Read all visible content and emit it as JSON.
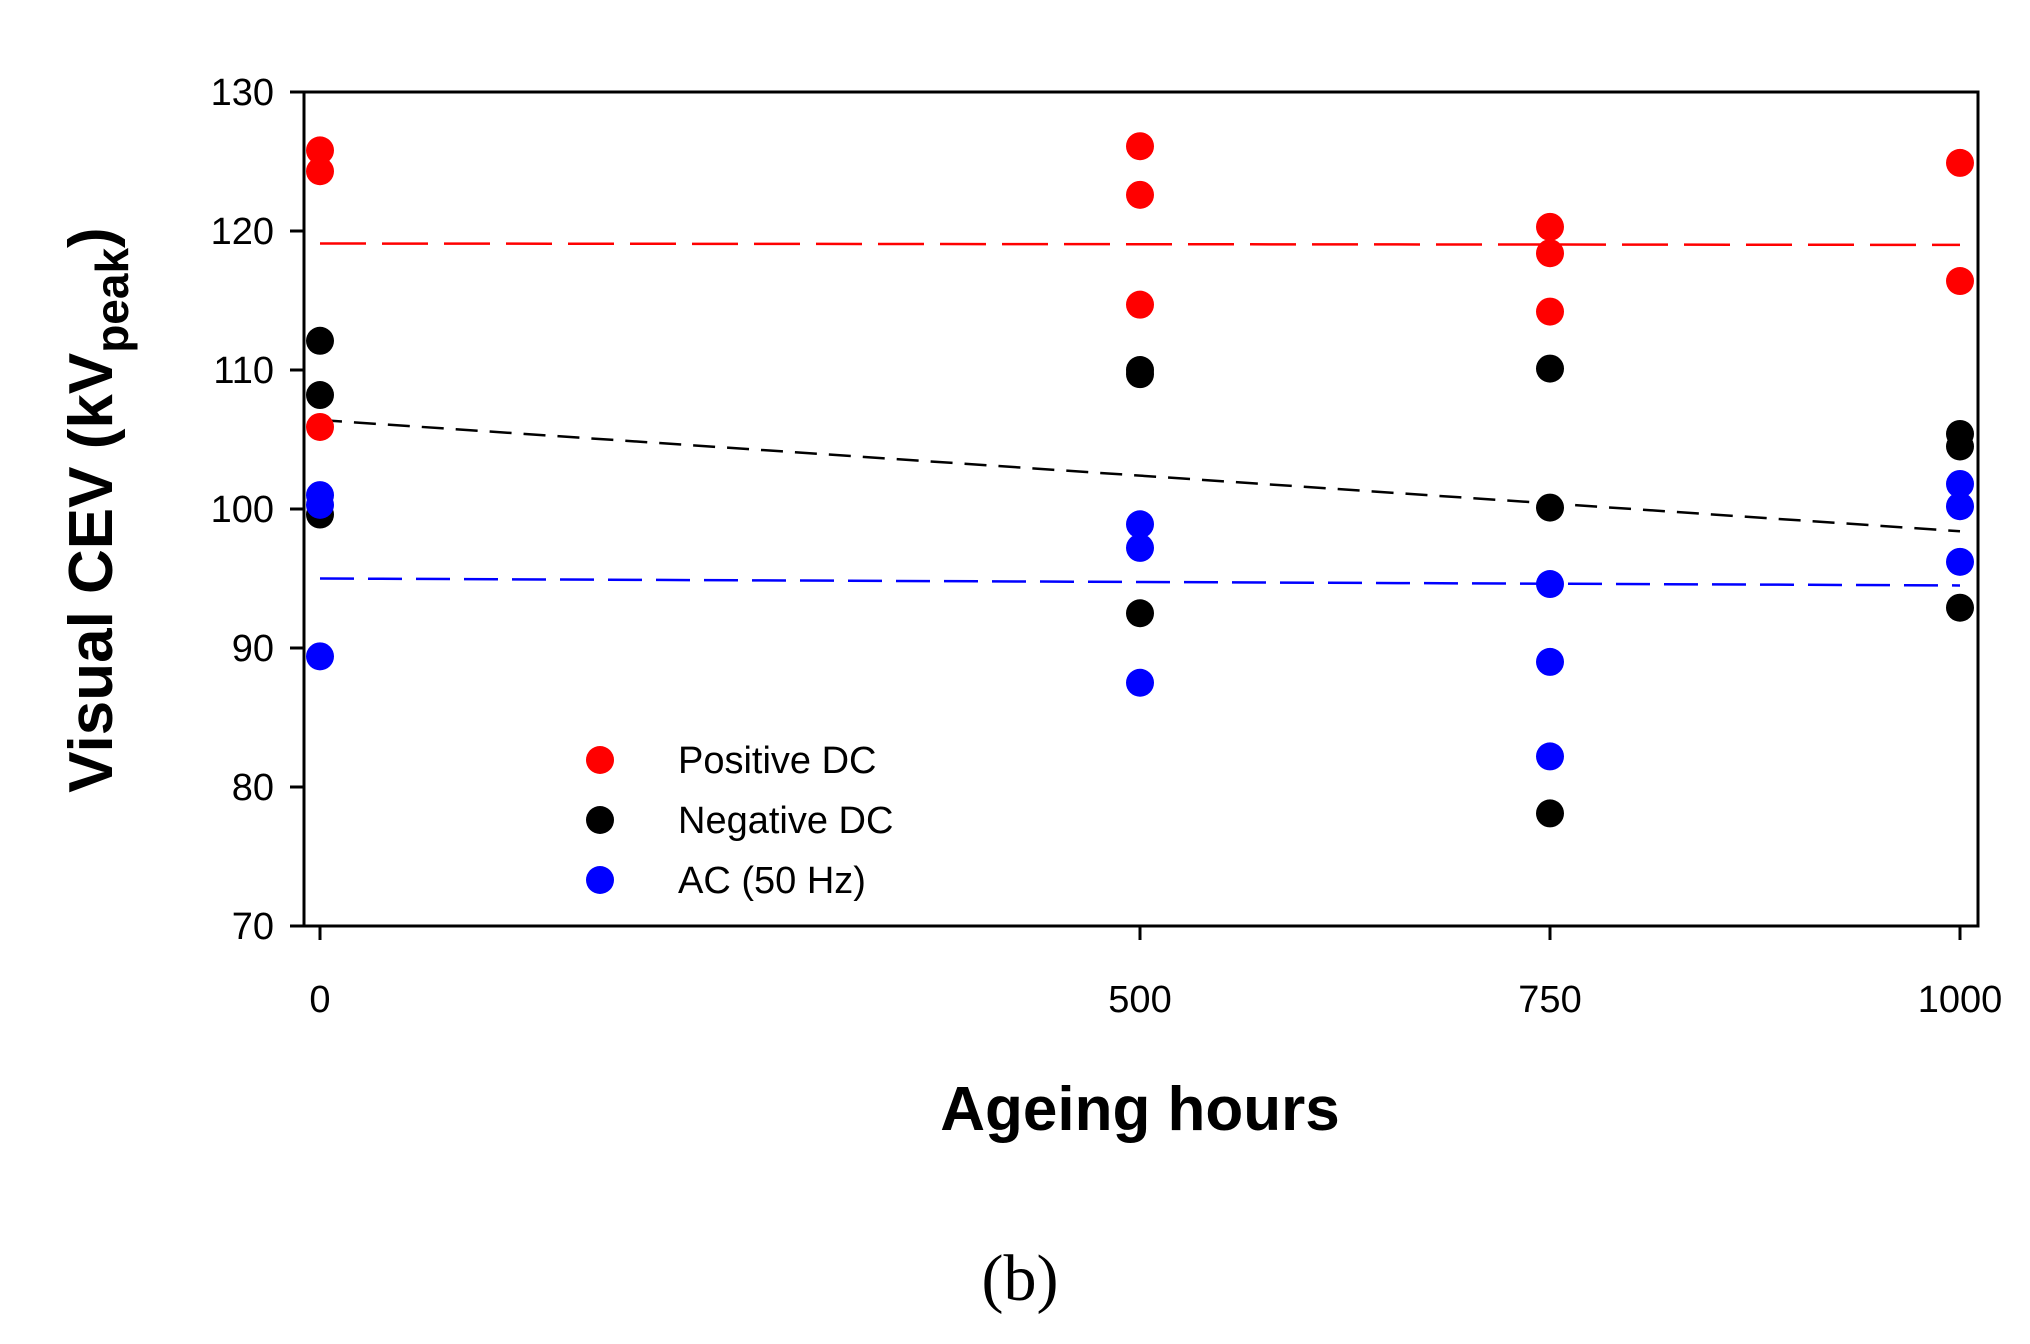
{
  "chart_data": {
    "type": "scatter",
    "title": "",
    "panel_label": "(b)",
    "xlabel": "Ageing hours",
    "ylabel_main": "Visual CEV (kV",
    "ylabel_sub": "peak",
    "ylabel_close": ")",
    "ylim": [
      70,
      130
    ],
    "yticks": [
      70,
      80,
      90,
      100,
      110,
      120,
      130
    ],
    "x_categories": [
      "0",
      "500",
      "750",
      "1000"
    ],
    "legend_position": "lower-left",
    "series": [
      {
        "name": "Positive DC",
        "color": "#ff0000",
        "points": [
          [
            0,
            125.8
          ],
          [
            0,
            124.3
          ],
          [
            0,
            105.9
          ],
          [
            1,
            126.1
          ],
          [
            1,
            122.6
          ],
          [
            1,
            114.7
          ],
          [
            2,
            120.3
          ],
          [
            2,
            118.4
          ],
          [
            2,
            114.2
          ],
          [
            3,
            124.9
          ],
          [
            3,
            116.4
          ]
        ],
        "trend": [
          119.1,
          119.0
        ]
      },
      {
        "name": "Negative DC",
        "color": "#000000",
        "points": [
          [
            0,
            112.1
          ],
          [
            0,
            108.2
          ],
          [
            0,
            99.6
          ],
          [
            1,
            110.0
          ],
          [
            1,
            109.7
          ],
          [
            1,
            92.5
          ],
          [
            2,
            110.1
          ],
          [
            2,
            100.1
          ],
          [
            2,
            78.1
          ],
          [
            3,
            105.4
          ],
          [
            3,
            104.5
          ],
          [
            3,
            92.9
          ]
        ],
        "trend": [
          106.4,
          98.4
        ]
      },
      {
        "name": "AC (50 Hz)",
        "color": "#0000ff",
        "points": [
          [
            0,
            101.0
          ],
          [
            0,
            100.3
          ],
          [
            0,
            89.4
          ],
          [
            1,
            98.9
          ],
          [
            1,
            97.2
          ],
          [
            1,
            87.5
          ],
          [
            2,
            94.6
          ],
          [
            2,
            89.0
          ],
          [
            2,
            82.2
          ],
          [
            3,
            101.8
          ],
          [
            3,
            100.2
          ],
          [
            3,
            96.2
          ]
        ],
        "trend": [
          95.0,
          94.5
        ]
      }
    ]
  }
}
